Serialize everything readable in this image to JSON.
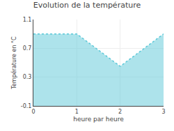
{
  "chart_data": {
    "type": "area",
    "title": "Evolution de la température",
    "x_label": "heure par heure",
    "y_label": "Température en °C",
    "x": [
      0,
      1,
      2,
      3
    ],
    "values": [
      0.9,
      0.9,
      0.45,
      0.9
    ],
    "color": "#5bc8d8",
    "line_style": "dotted",
    "xlim": [
      0,
      3
    ],
    "ylim": [
      -0.1,
      1.1
    ],
    "xticks": [
      0,
      1,
      2,
      3
    ],
    "yticks": [
      -0.1,
      0.3,
      0.7,
      1.1
    ],
    "grid": true
  }
}
